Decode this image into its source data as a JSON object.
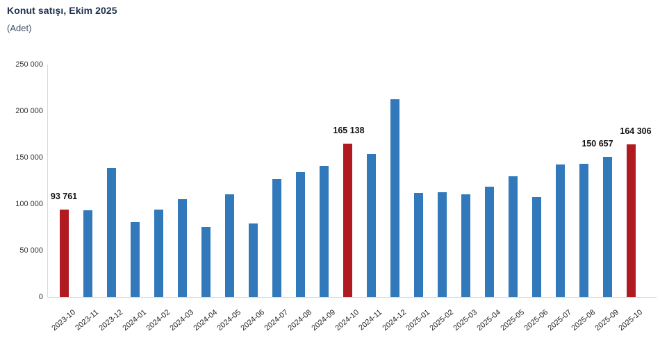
{
  "title": "Konut satışı, Ekim 2025",
  "subtitle": "(Adet)",
  "colors": {
    "bar": "#3279BB",
    "highlight": "#B01B21",
    "title_text": "#1F3050",
    "subtitle_text": "#3F4E5F",
    "axis_line": "#D9D9D9",
    "tick_text": "#333333",
    "data_label_text": "#111111"
  },
  "chart_data": {
    "type": "bar",
    "title": "Konut satışı, Ekim 2025",
    "unit_label": "(Adet)",
    "xlabel": "",
    "ylabel": "Adet",
    "ylim": [
      0,
      250000
    ],
    "grid": false,
    "legend": null,
    "categories": [
      "2023-10",
      "2023-11",
      "2023-12",
      "2024-01",
      "2024-02",
      "2024-03",
      "2024-04",
      "2024-05",
      "2024-06",
      "2024-07",
      "2024-08",
      "2024-09",
      "2024-10",
      "2024-11",
      "2024-12",
      "2025-01",
      "2025-02",
      "2025-03",
      "2025-04",
      "2025-05",
      "2025-06",
      "2025-07",
      "2025-08",
      "2025-09",
      "2025-10"
    ],
    "values": [
      93761,
      93514,
      138577,
      80308,
      93902,
      105476,
      75569,
      110588,
      79313,
      127088,
      134155,
      140919,
      165138,
      153625,
      212637,
      112173,
      112818,
      110795,
      118359,
      130025,
      107723,
      142858,
      143319,
      150657,
      164306
    ],
    "highlight_indices": [
      0,
      12,
      24
    ],
    "yticks": [
      {
        "value": 0,
        "label": "0"
      },
      {
        "value": 50000,
        "label": "50 000"
      },
      {
        "value": 100000,
        "label": "100 000"
      },
      {
        "value": 150000,
        "label": "150 000"
      },
      {
        "value": 200000,
        "label": "200 000"
      },
      {
        "value": 250000,
        "label": "250 000"
      }
    ],
    "data_labels": [
      {
        "index": 0,
        "text": "93 761",
        "dx": 0
      },
      {
        "index": 12,
        "text": "165 138",
        "dx": 2
      },
      {
        "index": 23,
        "text": "150 657",
        "dx": -14
      },
      {
        "index": 24,
        "text": "164 306",
        "dx": 7
      }
    ]
  }
}
